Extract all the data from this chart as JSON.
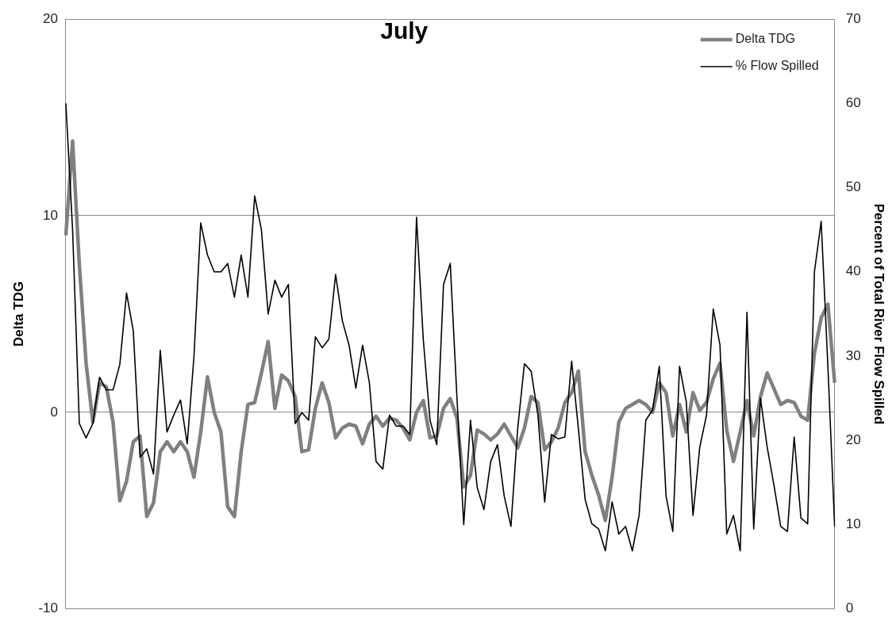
{
  "chart_data": {
    "type": "line",
    "title": "July",
    "ylabel": "Delta TDG",
    "y2label": "Percent of Total River Flow Spilled",
    "categories": [
      null,
      null,
      null,
      null,
      null,
      null,
      null,
      null,
      null,
      null,
      null,
      null,
      null,
      null,
      null,
      null,
      null,
      null,
      null,
      null,
      null,
      null,
      null,
      null,
      null,
      null,
      null,
      null,
      null,
      null,
      null,
      null,
      null,
      null,
      null,
      null,
      null,
      null,
      null,
      null,
      null,
      null,
      null,
      null,
      null,
      null,
      null,
      null,
      null,
      null,
      null,
      null,
      null,
      null,
      null,
      null,
      null,
      null,
      null,
      null,
      null,
      null,
      null,
      null,
      null,
      null,
      null,
      null,
      null,
      null,
      null,
      null,
      null,
      null,
      null,
      null,
      null,
      null,
      null,
      null,
      null,
      null,
      null,
      null,
      null,
      null,
      null,
      null,
      null,
      null,
      null,
      null,
      null,
      null,
      null,
      null,
      null,
      null,
      null,
      null,
      null,
      null,
      null,
      null,
      null,
      null,
      null,
      null,
      null,
      null,
      null,
      null,
      null,
      null,
      null
    ],
    "series": [
      {
        "name": "Delta TDG",
        "color": "#808080",
        "values": [
          9,
          13.8,
          7.5,
          2.5,
          -0.5,
          1.5,
          1.3,
          -0.5,
          -4.5,
          -3.5,
          -1.5,
          -1.2,
          -5.3,
          -4.6,
          -2,
          -1.5,
          -2,
          -1.5,
          -2,
          -3.3,
          -1,
          1.8,
          0,
          -1,
          -4.8,
          -5.3,
          -2,
          0.4,
          0.5,
          2,
          3.6,
          0.2,
          1.9,
          1.6,
          0.8,
          -2,
          -1.9,
          0.2,
          1.5,
          0.5,
          -1.3,
          -0.8,
          -0.6,
          -0.7,
          -1.6,
          -0.6,
          -0.2,
          -0.7,
          -0.3,
          -0.4,
          -0.8,
          -1.4,
          0,
          0.6,
          -1.3,
          -1.2,
          0.2,
          0.7,
          -0.3,
          -3.8,
          -3.2,
          -0.9,
          -1.1,
          -1.4,
          -1.1,
          -0.6,
          -1.2,
          -1.8,
          -0.8,
          0.8,
          0.5,
          -1.9,
          -1.5,
          -0.8,
          0.5,
          1,
          2.1,
          -2,
          -3.2,
          -4.2,
          -5.5,
          -3.3,
          -0.5,
          0.2,
          0.4,
          0.6,
          0.4,
          0,
          1.5,
          1,
          -1.2,
          0.4,
          -1,
          1,
          0.1,
          0.5,
          1.7,
          2.5,
          -0.9,
          -2.5,
          -1,
          0.6,
          -1.2,
          0.8,
          2,
          1.2,
          0.4,
          0.6,
          0.5,
          -0.2,
          -0.4,
          3,
          4.8,
          5.5,
          1.5
        ]
      },
      {
        "name": "% Flow Spilled",
        "color": "#000000",
        "axis": "y2",
        "values": [
          60,
          45,
          22,
          20.3,
          22,
          27.5,
          26,
          26,
          29,
          37.5,
          33,
          18,
          19,
          16,
          30.7,
          21,
          23,
          24.8,
          19.6,
          30,
          45.8,
          42,
          40,
          40,
          41,
          37,
          42,
          37,
          49,
          45,
          35,
          39,
          37,
          38.5,
          22,
          23.3,
          22.4,
          32.3,
          31,
          32,
          39.7,
          34.2,
          31.3,
          26.2,
          31.3,
          26.9,
          17.5,
          16.6,
          23,
          21.7,
          21.7,
          20.7,
          46.5,
          32,
          22.4,
          19.5,
          38.5,
          41,
          25,
          10,
          22.4,
          14.4,
          11.8,
          17.5,
          19.5,
          13.4,
          9.8,
          21.4,
          29.1,
          28.2,
          23,
          12.7,
          20.7,
          20.2,
          20.4,
          29.4,
          21.4,
          13,
          10.1,
          9.5,
          6.9,
          12.7,
          8.9,
          9.8,
          6.9,
          11.1,
          22.4,
          23.6,
          28.8,
          13.4,
          9.2,
          28.8,
          24.6,
          11.1,
          19.2,
          23,
          35.6,
          31.3,
          8.9,
          11.1,
          6.9,
          35.2,
          9.5,
          25,
          19.2,
          14.7,
          9.8,
          9.2,
          20.4,
          10.8,
          10.1,
          40,
          46,
          28.8,
          9.8
        ]
      }
    ],
    "ylim": [
      -10,
      20
    ],
    "yticks": [
      -10,
      0,
      10,
      20
    ],
    "y2lim": [
      0,
      70
    ],
    "y2ticks": [
      0,
      10,
      20,
      30,
      40,
      50,
      60,
      70
    ],
    "grid": "y",
    "legend": "top right",
    "marker": "none",
    "line_style": "solid"
  }
}
